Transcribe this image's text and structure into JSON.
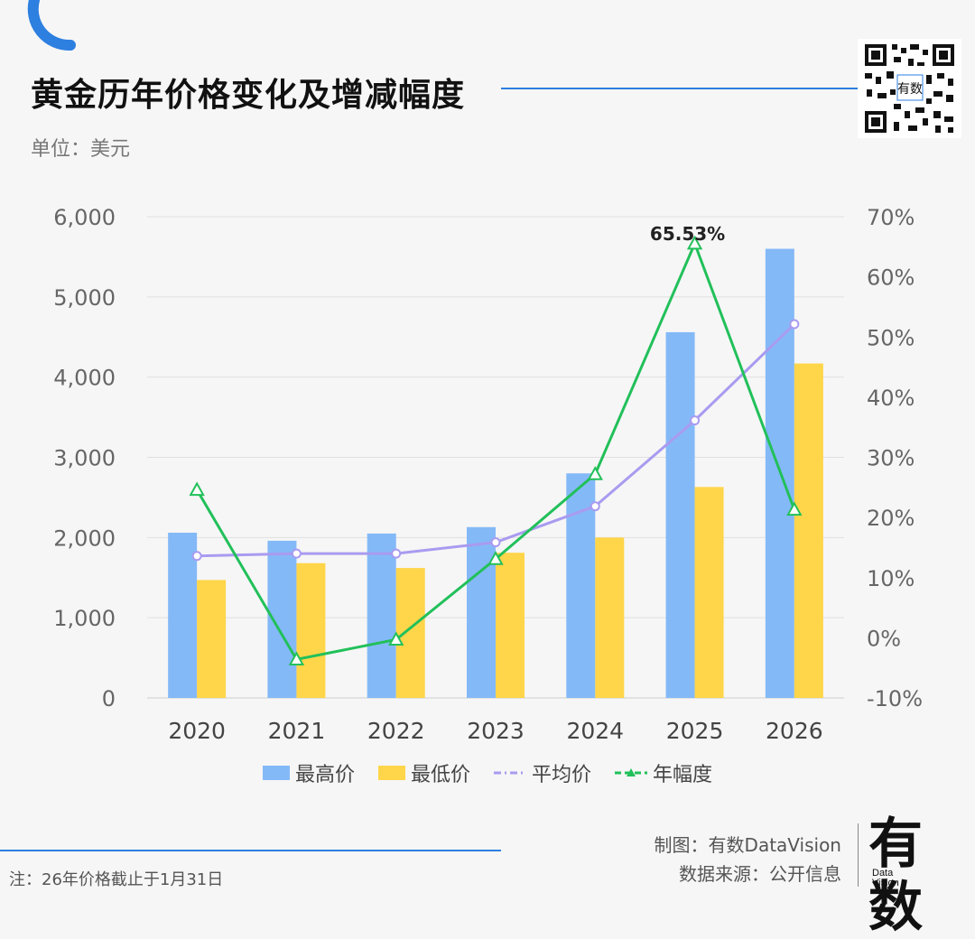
{
  "header": {
    "title": "黄金历年价格变化及增减幅度",
    "unit": "单位：美元"
  },
  "colors": {
    "high_bar": "#84b9f7",
    "low_bar": "#ffd54a",
    "avg_line": "#a99bf0",
    "pct_line": "#22c05a",
    "accent": "#2d7fe0"
  },
  "chart_data": {
    "type": "bar",
    "categories": [
      "2020",
      "2021",
      "2022",
      "2023",
      "2024",
      "2025",
      "2026"
    ],
    "series": [
      {
        "name": "最高价",
        "type": "bar",
        "axis": "left",
        "values": [
          2060,
          1960,
          2050,
          2130,
          2800,
          4560,
          5600
        ]
      },
      {
        "name": "最低价",
        "type": "bar",
        "axis": "left",
        "values": [
          1470,
          1680,
          1620,
          1810,
          2000,
          2630,
          4170
        ]
      },
      {
        "name": "平均价",
        "type": "line",
        "axis": "left",
        "values": [
          1770,
          1800,
          1800,
          1940,
          2390,
          3460,
          4660
        ]
      },
      {
        "name": "年幅度",
        "type": "line",
        "axis": "right",
        "values": [
          24.6,
          -3.6,
          -0.3,
          13.1,
          27.2,
          65.53,
          21.3
        ]
      }
    ],
    "left_axis": {
      "ylim": [
        0,
        6000
      ],
      "ticks": [
        0,
        1000,
        2000,
        3000,
        4000,
        5000,
        6000
      ],
      "tick_labels": [
        "0",
        "1,000",
        "2,000",
        "3,000",
        "4,000",
        "5,000",
        "6,000"
      ]
    },
    "right_axis": {
      "ylim": [
        -10,
        70
      ],
      "ticks": [
        -10,
        0,
        10,
        20,
        30,
        40,
        50,
        60,
        70
      ],
      "tick_labels": [
        "-10%",
        "0%",
        "10%",
        "20%",
        "30%",
        "40%",
        "50%",
        "60%",
        "70%"
      ]
    },
    "annotations": [
      {
        "label": "65.53%",
        "category": "2025",
        "series": "年幅度"
      }
    ],
    "legend": [
      "最高价",
      "最低价",
      "平均价",
      "年幅度"
    ],
    "legend_position": "bottom",
    "grid": true
  },
  "footer": {
    "note": "注：26年价格截止于1月31日",
    "credit_maker": "制图：有数DataVision",
    "credit_source": "数据来源：公开信息",
    "logo_main": "有数",
    "logo_sub1": "Data",
    "logo_sub2": "Vision"
  }
}
